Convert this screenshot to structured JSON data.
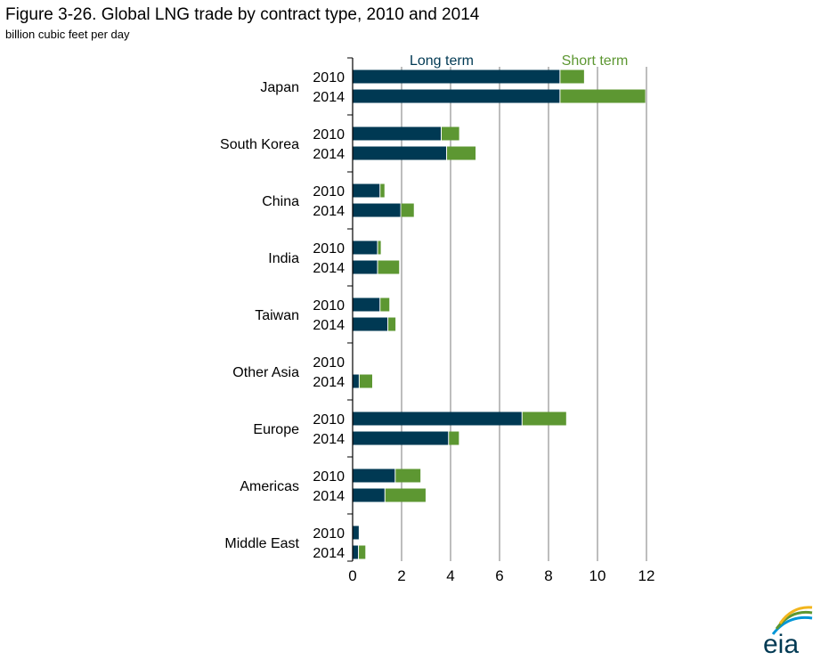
{
  "chart_data": {
    "type": "bar",
    "orientation": "horizontal",
    "stacked": true,
    "title": "Figure 3-26. Global LNG trade by contract type, 2010 and 2014",
    "subtitle": "billion cubic feet per day",
    "xlim": [
      0,
      12
    ],
    "xticks": [
      "0",
      "2",
      "4",
      "6",
      "8",
      "10",
      "12"
    ],
    "grid": true,
    "legend_placement": "top",
    "categories": [
      "Japan",
      "South Korea",
      "China",
      "India",
      "Taiwan",
      "Other Asia",
      "Europe",
      "Americas",
      "Middle East"
    ],
    "years": [
      "2010",
      "2014"
    ],
    "series": [
      {
        "name": "Long term",
        "color": "#003953",
        "values": [
          [
            8.45,
            8.45
          ],
          [
            3.6,
            3.82
          ],
          [
            1.1,
            1.95
          ],
          [
            1.0,
            1.0
          ],
          [
            1.1,
            1.42
          ],
          [
            0,
            0.25
          ],
          [
            6.9,
            3.9
          ],
          [
            1.72,
            1.3
          ],
          [
            0.25,
            0.22
          ]
        ]
      },
      {
        "name": "Short term",
        "color": "#5d9732",
        "values": [
          [
            1.0,
            3.5
          ],
          [
            0.75,
            1.2
          ],
          [
            0.2,
            0.55
          ],
          [
            0.15,
            0.9
          ],
          [
            0.4,
            0.33
          ],
          [
            0,
            0.55
          ],
          [
            1.82,
            0.44
          ],
          [
            1.05,
            1.68
          ],
          [
            0,
            0.3
          ]
        ]
      }
    ]
  },
  "logo": "eia"
}
